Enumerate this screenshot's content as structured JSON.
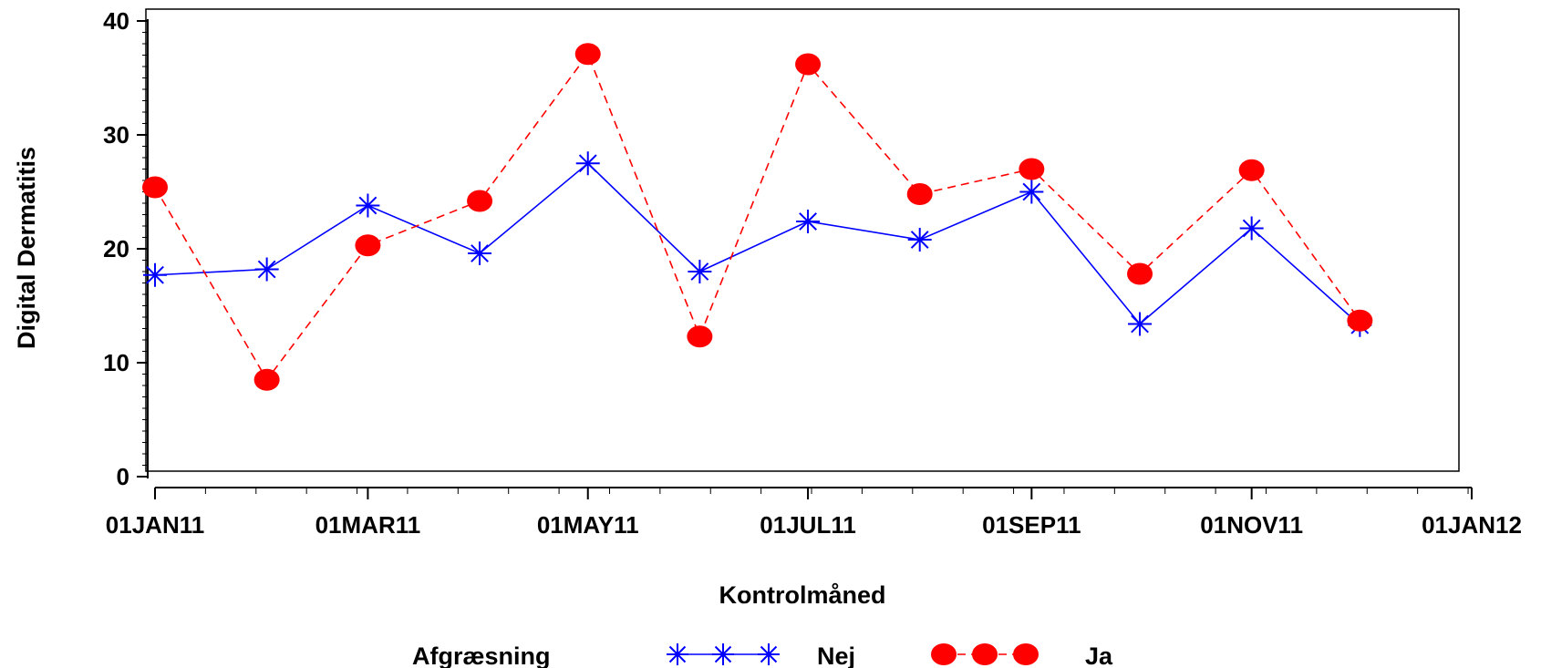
{
  "chart_data": {
    "type": "line",
    "xlabel": "Kontrolmåned",
    "ylabel": "Digital Dermatitis",
    "ylim": [
      0,
      40
    ],
    "y_ticks": [
      "0",
      "10",
      "20",
      "30",
      "40"
    ],
    "x_range": [
      "2011-01-01",
      "2012-01-01"
    ],
    "x_ticks": [
      {
        "date": "2011-01-01",
        "label": "01JAN11"
      },
      {
        "date": "2011-03-01",
        "label": "01MAR11"
      },
      {
        "date": "2011-05-01",
        "label": "01MAY11"
      },
      {
        "date": "2011-07-01",
        "label": "01JUL11"
      },
      {
        "date": "2011-09-01",
        "label": "01SEP11"
      },
      {
        "date": "2011-11-01",
        "label": "01NOV11"
      },
      {
        "date": "2012-01-01",
        "label": "01JAN12"
      }
    ],
    "x": [
      "2011-01-01",
      "2011-02-01",
      "2011-03-01",
      "2011-04-01",
      "2011-05-01",
      "2011-06-01",
      "2011-07-01",
      "2011-08-01",
      "2011-09-01",
      "2011-10-01",
      "2011-11-01",
      "2011-12-01"
    ],
    "legend_title": "Afgræsning",
    "legend_position": "bottom",
    "grid": false,
    "series": [
      {
        "name": "Nej",
        "color": "#0000ff",
        "line": "solid",
        "marker": "star",
        "values": [
          17.7,
          18.2,
          23.8,
          19.6,
          27.5,
          18.0,
          22.4,
          20.8,
          25.0,
          13.4,
          21.8,
          13.3
        ]
      },
      {
        "name": "Ja",
        "color": "#ff0000",
        "line": "dashed",
        "marker": "dot",
        "values": [
          25.4,
          8.5,
          20.3,
          24.2,
          37.1,
          12.3,
          36.2,
          24.8,
          27.0,
          17.8,
          26.9,
          13.7
        ]
      }
    ]
  }
}
